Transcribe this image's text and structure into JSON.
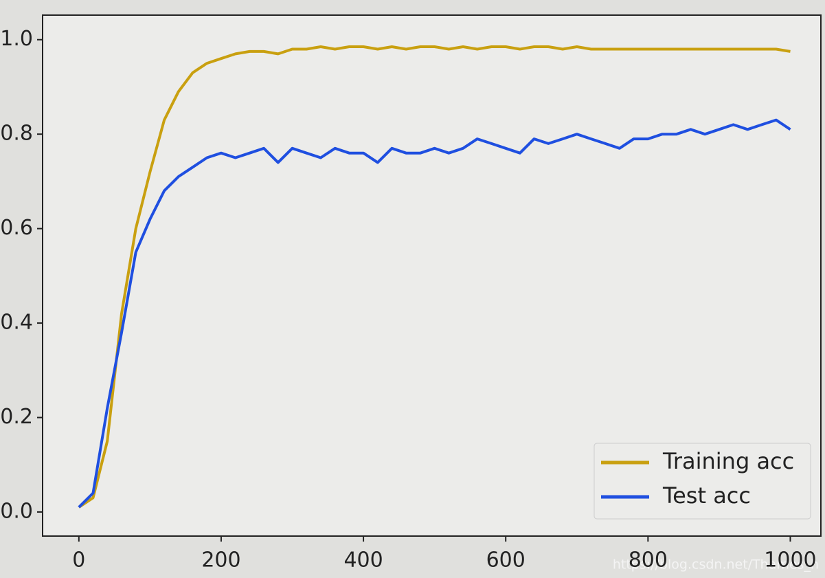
{
  "chart_data": {
    "type": "line",
    "x": [
      0,
      20,
      40,
      60,
      80,
      100,
      120,
      140,
      160,
      180,
      200,
      220,
      240,
      260,
      280,
      300,
      320,
      340,
      360,
      380,
      400,
      420,
      440,
      460,
      480,
      500,
      520,
      540,
      560,
      580,
      600,
      620,
      640,
      660,
      680,
      700,
      720,
      740,
      760,
      780,
      800,
      820,
      840,
      860,
      880,
      900,
      920,
      940,
      960,
      980,
      1000
    ],
    "series": [
      {
        "name": "Training acc",
        "color": "#c9a010",
        "values": [
          0.01,
          0.03,
          0.15,
          0.42,
          0.6,
          0.72,
          0.83,
          0.89,
          0.93,
          0.95,
          0.96,
          0.97,
          0.975,
          0.975,
          0.97,
          0.98,
          0.98,
          0.985,
          0.98,
          0.985,
          0.985,
          0.98,
          0.985,
          0.98,
          0.985,
          0.985,
          0.98,
          0.985,
          0.98,
          0.985,
          0.985,
          0.98,
          0.985,
          0.985,
          0.98,
          0.985,
          0.98,
          0.98,
          0.98,
          0.98,
          0.98,
          0.98,
          0.98,
          0.98,
          0.98,
          0.98,
          0.98,
          0.98,
          0.98,
          0.98,
          0.975
        ]
      },
      {
        "name": "Test acc",
        "color": "#1f4fe0",
        "values": [
          0.01,
          0.04,
          0.22,
          0.38,
          0.55,
          0.62,
          0.68,
          0.71,
          0.73,
          0.75,
          0.76,
          0.75,
          0.76,
          0.77,
          0.74,
          0.77,
          0.76,
          0.75,
          0.77,
          0.76,
          0.76,
          0.74,
          0.77,
          0.76,
          0.76,
          0.77,
          0.76,
          0.77,
          0.79,
          0.78,
          0.77,
          0.76,
          0.79,
          0.78,
          0.79,
          0.8,
          0.79,
          0.78,
          0.77,
          0.79,
          0.79,
          0.8,
          0.8,
          0.81,
          0.8,
          0.81,
          0.82,
          0.81,
          0.82,
          0.83,
          0.81
        ]
      }
    ],
    "xlim": [
      -51,
      1043
    ],
    "ylim": [
      -0.051,
      1.052
    ],
    "xticks": [
      0,
      200,
      400,
      600,
      800,
      1000
    ],
    "yticks": [
      {
        "value": 0,
        "label": "0.0"
      },
      {
        "value": 0.2,
        "label": "0.2"
      },
      {
        "value": 0.4,
        "label": "0.4"
      },
      {
        "value": 0.6,
        "label": "0.6"
      },
      {
        "value": 0.8,
        "label": "0.8"
      },
      {
        "value": 1.0,
        "label": "1.0"
      }
    ],
    "legend": "lower right",
    "watermark": "https://blog.csdn.net/Thames_h"
  }
}
